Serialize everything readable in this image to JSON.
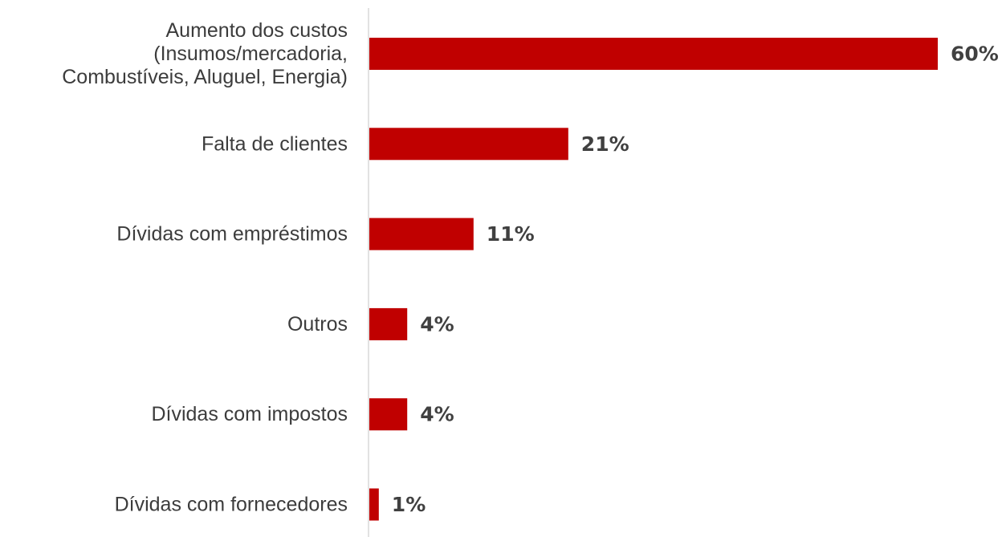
{
  "chart_data": {
    "type": "bar",
    "orientation": "horizontal",
    "categories": [
      [
        "Aumento dos custos",
        "(Insumos/mercadoria,",
        "Combustíveis, Aluguel, Energia)"
      ],
      [
        "Falta de clientes"
      ],
      [
        "Dívidas com empréstimos"
      ],
      [
        "Outros"
      ],
      [
        "Dívidas com impostos"
      ],
      [
        "Dívidas com fornecedores"
      ]
    ],
    "values": [
      60,
      21,
      11,
      4,
      4,
      1
    ],
    "value_labels": [
      "60%",
      "21%",
      "11%",
      "4%",
      "4%",
      "1%"
    ],
    "xlim": [
      0,
      60
    ],
    "grid": false,
    "legend": "none",
    "title": "",
    "xlabel": "",
    "ylabel": "",
    "colors": {
      "bar": "#c00000",
      "axis": "#d9d9d9",
      "category_text": "#3c3c3c",
      "value_text": "#404040"
    }
  }
}
